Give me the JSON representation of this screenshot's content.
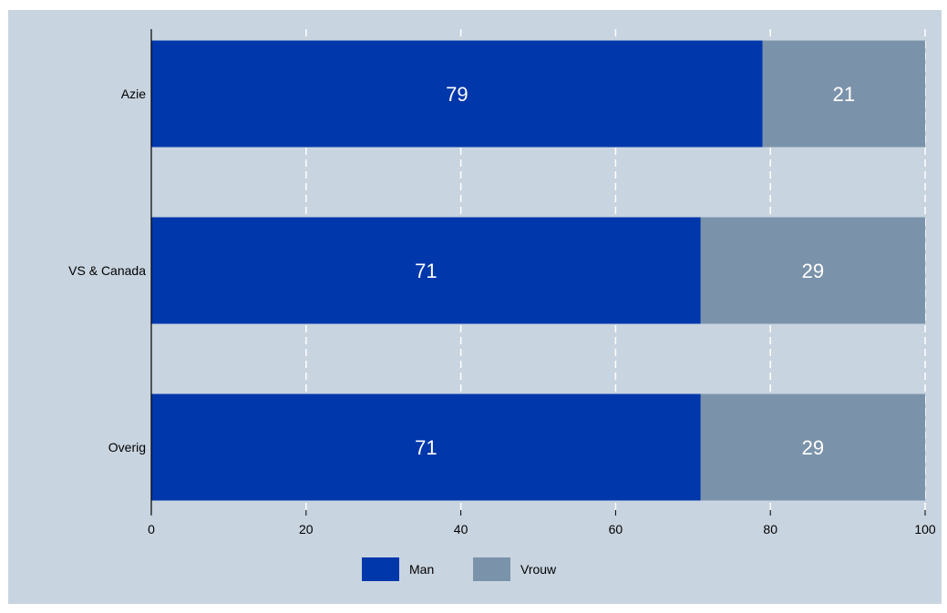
{
  "chart_data": {
    "type": "bar",
    "orientation": "horizontal",
    "stacked": true,
    "categories": [
      "Azie",
      "VS & Canada",
      "Overig"
    ],
    "series": [
      {
        "name": "Man",
        "values": [
          79,
          71,
          71
        ],
        "color": "#0037ab"
      },
      {
        "name": "Vrouw",
        "values": [
          21,
          29,
          29
        ],
        "color": "#7b93aa"
      }
    ],
    "xlim": [
      0,
      100
    ],
    "xticks": [
      "0",
      "20",
      "40",
      "60",
      "80",
      "100"
    ],
    "grid": "vertical dashed white",
    "legend_position": "bottom"
  },
  "colors": {
    "background": "#c8d4e0",
    "gridline": "#ffffff",
    "axis": "#000000"
  }
}
